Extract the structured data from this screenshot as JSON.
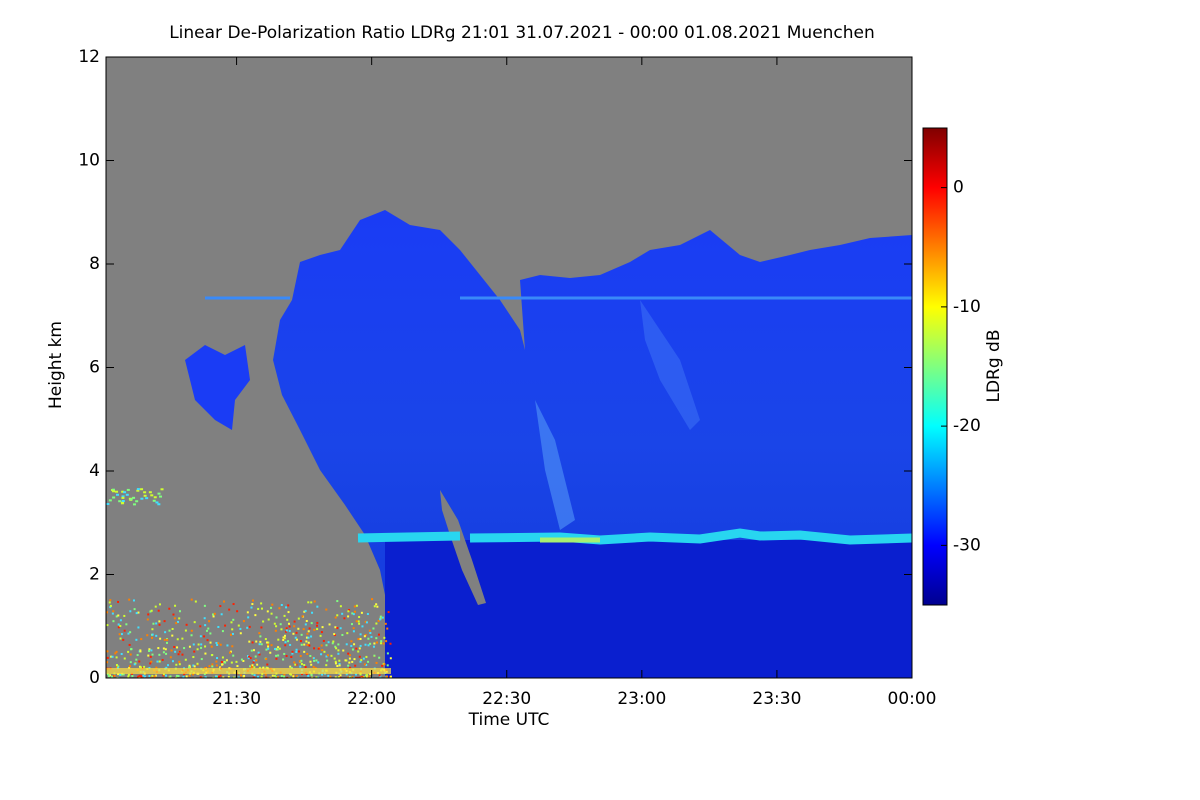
{
  "chart_data": {
    "type": "heatmap",
    "title": "Linear De-Polarization Ratio LDRg   21:01 31.07.2021 - 00:00 01.08.2021 Muenchen",
    "x_label": "Time UTC",
    "y_label": "Height km",
    "colorbar_label": "LDRg dB",
    "xlim": [
      1261,
      1440
    ],
    "xticks": [
      {
        "value": 1290,
        "label": "21:30"
      },
      {
        "value": 1320,
        "label": "22:00"
      },
      {
        "value": 1350,
        "label": "22:30"
      },
      {
        "value": 1380,
        "label": "23:00"
      },
      {
        "value": 1410,
        "label": "23:30"
      },
      {
        "value": 1440,
        "label": "00:00"
      }
    ],
    "ylim": [
      0,
      12
    ],
    "yticks": [
      0,
      2,
      4,
      6,
      8,
      10,
      12
    ],
    "zlim": [
      -35,
      5
    ],
    "zticks": [
      -30,
      -20,
      -10,
      0
    ],
    "colormap": "jet",
    "background_color": "#808080"
  }
}
